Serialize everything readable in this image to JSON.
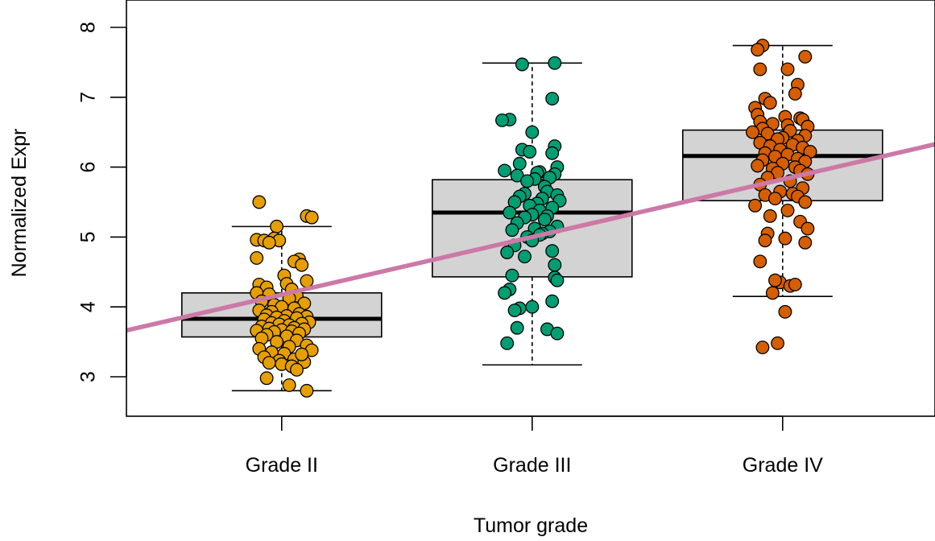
{
  "chart_data": {
    "type": "box",
    "title": "",
    "xlabel": "Tumor grade",
    "ylabel": "Normalized Expr",
    "ylim": [
      2.45,
      8.4
    ],
    "yticks": [
      "3",
      "4",
      "5",
      "6",
      "7",
      "8"
    ],
    "categories": [
      "Grade II",
      "Grade III",
      "Grade IV"
    ],
    "grid": false,
    "legend": "none",
    "colors": {
      "box_fill": "#d3d3d3",
      "grade_ii": "#e69f00",
      "grade_iii": "#009e73",
      "grade_iv": "#d55e00",
      "fit_line": "#cc79a7"
    },
    "boxes": [
      {
        "category": "Grade II",
        "whisker_low": 2.8,
        "q1": 3.57,
        "median": 3.83,
        "q3": 4.2,
        "whisker_high": 5.15
      },
      {
        "category": "Grade III",
        "whisker_low": 3.17,
        "q1": 4.43,
        "median": 5.35,
        "q3": 5.82,
        "whisker_high": 7.49
      },
      {
        "category": "Grade IV",
        "whisker_low": 4.15,
        "q1": 5.52,
        "median": 6.16,
        "q3": 6.53,
        "whisker_high": 7.74
      }
    ],
    "regression_line": {
      "x": [
        0.0,
        4.0
      ],
      "y": [
        3.35,
        6.65
      ]
    },
    "points": [
      {
        "category": "Grade II",
        "jitter": [
          -0.09,
          0.1,
          -0.02,
          0.12,
          -0.03,
          -0.1,
          -0.07,
          -0.01,
          -0.05,
          -0.1,
          0.07,
          0.05,
          0.08,
          0.01,
          0.1,
          0.02,
          -0.09,
          -0.06,
          0.04,
          -0.1,
          -0.05,
          0.06,
          0.03,
          -0.08,
          0.09,
          -0.03,
          0.0,
          0.05,
          -0.09,
          -0.04,
          0.07,
          -0.06,
          0.02,
          0.1,
          -0.02,
          0.06,
          -0.07,
          0.01,
          0.11,
          -0.04,
          0.08,
          -0.01,
          0.03,
          -0.08,
          0.05,
          -0.05,
          0.09,
          0.0,
          -0.1,
          0.04,
          -0.03,
          0.07,
          -0.06,
          0.02,
          -0.08,
          0.06,
          -0.02,
          0.1,
          0.03,
          -0.09,
          0.12,
          -0.04,
          0.01,
          0.08,
          -0.07,
          0.05,
          -0.01,
          0.09,
          -0.05,
          0.0,
          0.04,
          0.06,
          -0.06,
          0.03,
          0.1,
          0.08
        ],
        "values": [
          5.5,
          5.3,
          5.15,
          5.28,
          4.98,
          4.96,
          4.95,
          4.95,
          4.92,
          4.7,
          4.68,
          4.65,
          4.6,
          4.45,
          4.37,
          4.33,
          4.32,
          4.28,
          4.25,
          4.2,
          4.18,
          4.16,
          4.12,
          4.08,
          4.05,
          4.03,
          4.0,
          3.98,
          3.95,
          3.93,
          3.9,
          3.88,
          3.87,
          3.86,
          3.85,
          3.84,
          3.82,
          3.8,
          3.78,
          3.77,
          3.76,
          3.75,
          3.74,
          3.72,
          3.7,
          3.69,
          3.68,
          3.67,
          3.66,
          3.65,
          3.64,
          3.62,
          3.6,
          3.58,
          3.55,
          3.52,
          3.5,
          3.45,
          3.43,
          3.4,
          3.38,
          3.35,
          3.33,
          3.3,
          3.28,
          3.25,
          3.23,
          3.21,
          3.2,
          3.18,
          3.15,
          3.1,
          2.98,
          2.88,
          2.8,
          3.32
        ]
      },
      {
        "category": "Grade III",
        "jitter": [
          -0.04,
          0.09,
          0.08,
          -0.09,
          -0.12,
          0.0,
          0.09,
          -0.04,
          -0.01,
          0.08,
          -0.05,
          0.1,
          -0.11,
          0.03,
          0.02,
          0.09,
          -0.06,
          0.07,
          0.01,
          -0.02,
          0.05,
          0.06,
          -0.03,
          0.1,
          -0.05,
          0.04,
          0.11,
          -0.07,
          0.02,
          -0.01,
          0.08,
          0.03,
          -0.09,
          0.0,
          0.06,
          -0.03,
          0.05,
          -0.06,
          0.1,
          0.01,
          -0.08,
          0.07,
          0.04,
          0.03,
          -0.02,
          0.0,
          -0.07,
          0.08,
          -0.1,
          -0.03,
          0.09,
          -0.08,
          0.09,
          0.1,
          -0.09,
          -0.11,
          0.0,
          -0.05,
          0.08,
          -0.06,
          0.06,
          0.1,
          -0.07,
          -0.1
        ],
        "values": [
          7.47,
          7.49,
          6.98,
          6.68,
          6.67,
          6.5,
          6.3,
          6.25,
          6.22,
          6.2,
          6.05,
          6.0,
          5.95,
          5.93,
          5.92,
          5.9,
          5.88,
          5.85,
          5.83,
          5.8,
          5.72,
          5.65,
          5.62,
          5.6,
          5.58,
          5.55,
          5.52,
          5.5,
          5.48,
          5.45,
          5.42,
          5.38,
          5.35,
          5.32,
          5.3,
          5.28,
          5.25,
          5.2,
          5.15,
          5.12,
          5.1,
          5.08,
          5.05,
          5.03,
          5.0,
          4.95,
          4.88,
          4.8,
          4.78,
          4.72,
          4.6,
          4.45,
          4.42,
          4.38,
          4.25,
          4.2,
          4.0,
          3.98,
          4.08,
          3.7,
          3.68,
          3.62,
          3.95,
          3.48
        ]
      },
      {
        "category": "Grade IV",
        "jitter": [
          -0.08,
          -0.1,
          0.09,
          0.02,
          -0.09,
          0.06,
          0.05,
          -0.07,
          -0.05,
          -0.11,
          -0.1,
          0.01,
          0.07,
          0.08,
          -0.09,
          -0.04,
          0.02,
          0.1,
          -0.08,
          0.03,
          -0.12,
          -0.06,
          0.09,
          0.0,
          -0.02,
          0.06,
          -0.09,
          0.04,
          -0.05,
          0.08,
          -0.01,
          0.11,
          -0.07,
          0.02,
          -0.03,
          0.06,
          -0.08,
          0.09,
          0.0,
          -0.1,
          0.05,
          -0.04,
          0.07,
          -0.02,
          0.1,
          -0.06,
          0.03,
          -0.09,
          0.08,
          -0.01,
          0.04,
          -0.07,
          0.06,
          -0.03,
          0.09,
          -0.11,
          0.02,
          -0.05,
          0.07,
          0.1,
          -0.06,
          0.01,
          0.09,
          -0.01,
          -0.09,
          -0.07,
          -0.04,
          -0.03,
          0.03,
          0.05,
          0.01,
          -0.02,
          -0.08
        ],
        "values": [
          7.74,
          7.68,
          7.58,
          7.4,
          7.4,
          7.18,
          7.05,
          6.98,
          6.92,
          6.85,
          6.75,
          6.72,
          6.7,
          6.68,
          6.65,
          6.62,
          6.6,
          6.58,
          6.55,
          6.52,
          6.5,
          6.48,
          6.45,
          6.42,
          6.4,
          6.38,
          6.35,
          6.32,
          6.3,
          6.28,
          6.25,
          6.22,
          6.2,
          6.18,
          6.15,
          6.12,
          6.1,
          6.08,
          6.05,
          6.02,
          6.0,
          5.98,
          5.95,
          5.92,
          5.9,
          5.85,
          5.8,
          5.75,
          5.7,
          5.65,
          5.62,
          5.6,
          5.58,
          5.55,
          5.5,
          5.45,
          5.38,
          5.3,
          5.22,
          5.12,
          5.05,
          4.98,
          4.92,
          4.35,
          4.65,
          4.95,
          4.2,
          4.38,
          4.3,
          4.32,
          3.93,
          3.48,
          3.42
        ]
      }
    ]
  }
}
